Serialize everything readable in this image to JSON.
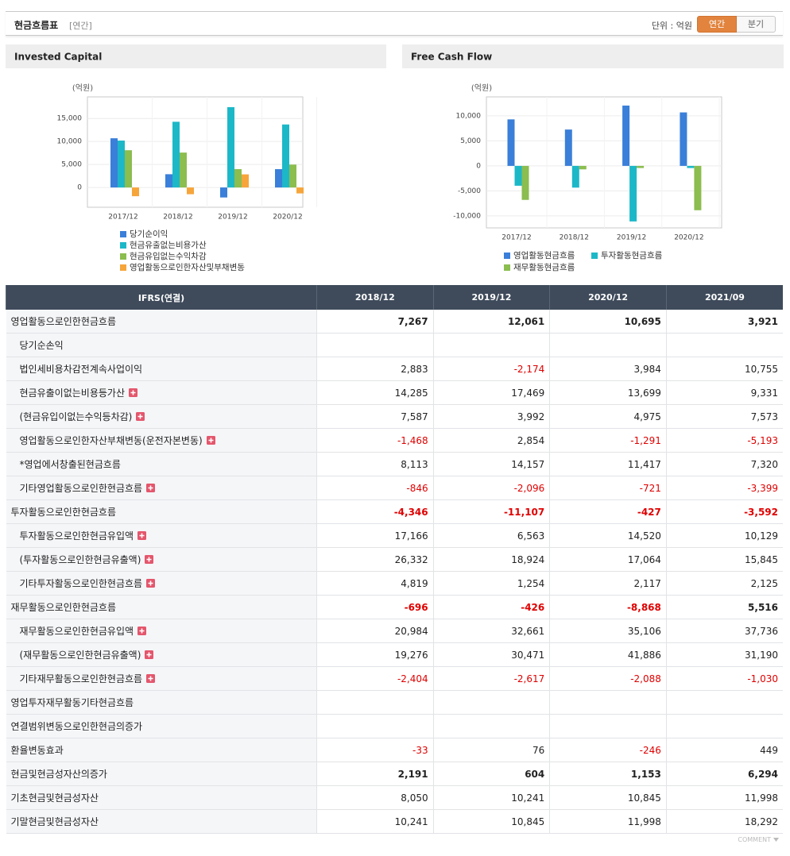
{
  "header": {
    "title": "현금흐름표",
    "period": "[연간]",
    "unit": "단위 : 억원",
    "tabs": [
      "연간",
      "분기"
    ],
    "active_tab": 0
  },
  "chart_data": [
    {
      "type": "bar",
      "title": "Invested Capital",
      "ylabel": "(억원)",
      "categories": [
        "2017/12",
        "2018/12",
        "2019/12",
        "2020/12"
      ],
      "series": [
        {
          "name": "당기순이익",
          "color": "#3a7fd9",
          "values": [
            10700,
            2883,
            -2174,
            3984
          ]
        },
        {
          "name": "현금유출없는비용가산",
          "color": "#1cb8c8",
          "values": [
            10200,
            14285,
            17469,
            13699
          ]
        },
        {
          "name": "현금유입없는수익차감",
          "color": "#8bbd4f",
          "values": [
            8100,
            7587,
            3992,
            4975
          ]
        },
        {
          "name": "영업활동으로인한자산및부채변동",
          "color": "#f6a53b",
          "values": [
            -1900,
            -1468,
            2854,
            -1291
          ]
        }
      ],
      "ylim": [
        -4300,
        19700
      ],
      "yticks": [
        0,
        {
          "value": 5000,
          "label": "5,000"
        },
        {
          "value": 10000,
          "label": "10,000"
        },
        {
          "value": 15000,
          "label": "15,000"
        }
      ],
      "grid": true
    },
    {
      "type": "bar",
      "title": "Free Cash Flow",
      "ylabel": "(억원)",
      "categories": [
        "2017/12",
        "2018/12",
        "2019/12",
        "2020/12"
      ],
      "series": [
        {
          "name": "영업활동현금흐름",
          "color": "#3a7fd9",
          "values": [
            9300,
            7267,
            12061,
            10695
          ]
        },
        {
          "name": "투자활동현금흐름",
          "color": "#1cb8c8",
          "values": [
            -3970,
            -4346,
            -11107,
            -427
          ]
        },
        {
          "name": "재무활동현금흐름",
          "color": "#8bbd4f",
          "values": [
            -6800,
            -696,
            -426,
            -8868
          ]
        }
      ],
      "ylim": [
        -12400,
        13800
      ],
      "yticks": [
        {
          "value": -10000,
          "label": "-10,000"
        },
        {
          "value": -5000,
          "label": "-5,000"
        },
        0,
        {
          "value": 5000,
          "label": "5,000"
        },
        {
          "value": 10000,
          "label": "10,000"
        }
      ],
      "grid": true
    }
  ],
  "table": {
    "columns": [
      "IFRS(연결)",
      "2018/12",
      "2019/12",
      "2020/12",
      "2021/09"
    ],
    "rows": [
      {
        "label": "영업활동으로인한현금흐름",
        "bold": true,
        "indent": false,
        "expand": false,
        "values": [
          "7,267",
          "12,061",
          "10,695",
          "3,921"
        ]
      },
      {
        "label": "당기순손익",
        "bold": false,
        "indent": true,
        "expand": false,
        "values": [
          null,
          null,
          null,
          null
        ]
      },
      {
        "label": "법인세비용차감전계속사업이익",
        "bold": false,
        "indent": true,
        "expand": false,
        "values": [
          "2,883",
          "-2,174",
          "3,984",
          "10,755"
        ]
      },
      {
        "label": "현금유출이없는비용등가산",
        "bold": false,
        "indent": true,
        "expand": true,
        "values": [
          "14,285",
          "17,469",
          "13,699",
          "9,331"
        ]
      },
      {
        "label": "(현금유입이없는수익등차감)",
        "bold": false,
        "indent": true,
        "expand": true,
        "values": [
          "7,587",
          "3,992",
          "4,975",
          "7,573"
        ]
      },
      {
        "label": "영업활동으로인한자산부채변동(운전자본변동)",
        "bold": false,
        "indent": true,
        "expand": true,
        "values": [
          "-1,468",
          "2,854",
          "-1,291",
          "-5,193"
        ]
      },
      {
        "label": "*영업에서창출된현금흐름",
        "bold": false,
        "indent": true,
        "expand": false,
        "values": [
          "8,113",
          "14,157",
          "11,417",
          "7,320"
        ]
      },
      {
        "label": "기타영업활동으로인한현금흐름",
        "bold": false,
        "indent": true,
        "expand": true,
        "values": [
          "-846",
          "-2,096",
          "-721",
          "-3,399"
        ]
      },
      {
        "label": "투자활동으로인한현금흐름",
        "bold": true,
        "indent": false,
        "expand": false,
        "values": [
          "-4,346",
          "-11,107",
          "-427",
          "-3,592"
        ]
      },
      {
        "label": "투자활동으로인한현금유입액",
        "bold": false,
        "indent": true,
        "expand": true,
        "values": [
          "17,166",
          "6,563",
          "14,520",
          "10,129"
        ]
      },
      {
        "label": "(투자활동으로인한현금유출액)",
        "bold": false,
        "indent": true,
        "expand": true,
        "values": [
          "26,332",
          "18,924",
          "17,064",
          "15,845"
        ]
      },
      {
        "label": "기타투자활동으로인한현금흐름",
        "bold": false,
        "indent": true,
        "expand": true,
        "values": [
          "4,819",
          "1,254",
          "2,117",
          "2,125"
        ]
      },
      {
        "label": "재무활동으로인한현금흐름",
        "bold": true,
        "indent": false,
        "expand": false,
        "values": [
          "-696",
          "-426",
          "-8,868",
          "5,516"
        ]
      },
      {
        "label": "재무활동으로인한현금유입액",
        "bold": false,
        "indent": true,
        "expand": true,
        "values": [
          "20,984",
          "32,661",
          "35,106",
          "37,736"
        ]
      },
      {
        "label": "(재무활동으로인한현금유출액)",
        "bold": false,
        "indent": true,
        "expand": true,
        "values": [
          "19,276",
          "30,471",
          "41,886",
          "31,190"
        ]
      },
      {
        "label": "기타재무활동으로인한현금흐름",
        "bold": false,
        "indent": true,
        "expand": true,
        "values": [
          "-2,404",
          "-2,617",
          "-2,088",
          "-1,030"
        ]
      },
      {
        "label": "영업투자재무활동기타현금흐름",
        "bold": false,
        "indent": false,
        "expand": false,
        "values": [
          null,
          null,
          null,
          null
        ]
      },
      {
        "label": "연결범위변동으로인한현금의증가",
        "bold": false,
        "indent": false,
        "expand": false,
        "values": [
          null,
          null,
          null,
          null
        ]
      },
      {
        "label": "환율변동효과",
        "bold": false,
        "indent": false,
        "expand": false,
        "values": [
          "-33",
          "76",
          "-246",
          "449"
        ]
      },
      {
        "label": "현금및현금성자산의증가",
        "bold": true,
        "indent": false,
        "expand": false,
        "values": [
          "2,191",
          "604",
          "1,153",
          "6,294"
        ]
      },
      {
        "label": "기초현금및현금성자산",
        "bold": false,
        "indent": false,
        "expand": false,
        "values": [
          "8,050",
          "10,241",
          "10,845",
          "11,998"
        ]
      },
      {
        "label": "기말현금및현금성자산",
        "bold": false,
        "indent": false,
        "expand": false,
        "values": [
          "10,241",
          "10,845",
          "11,998",
          "18,292"
        ]
      }
    ],
    "footer": "COMMENT"
  }
}
